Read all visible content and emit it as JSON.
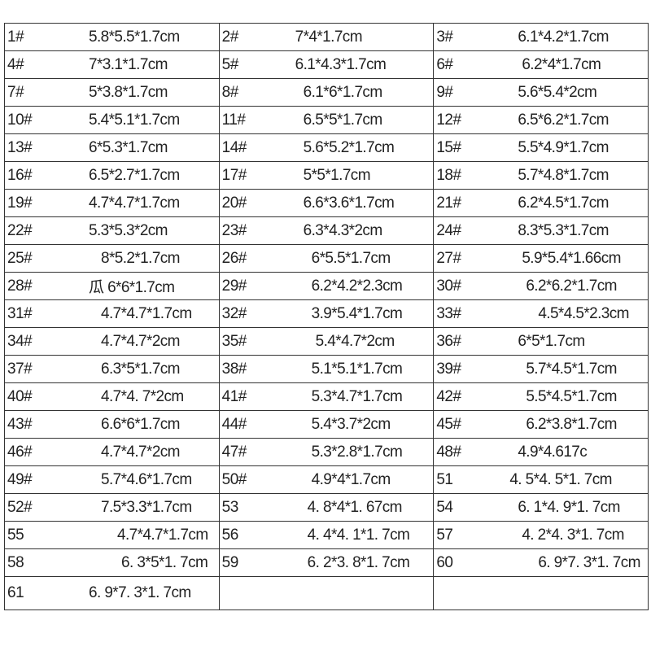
{
  "rows": [
    [
      {
        "id": "1#",
        "size": "5.8*5.5*1.7cm"
      },
      {
        "id": "2#",
        "size": "7*4*1.7cm"
      },
      {
        "id": "3#",
        "size": "6.1*4.2*1.7cm"
      }
    ],
    [
      {
        "id": "4#",
        "size": "7*3.1*1.7cm"
      },
      {
        "id": "5#",
        "size": "6.1*4.3*1.7cm"
      },
      {
        "id": "6#",
        "size": "6.2*4*1.7cm"
      }
    ],
    [
      {
        "id": "7#",
        "size": "5*3.8*1.7cm"
      },
      {
        "id": "8#",
        "size": "6.1*6*1.7cm"
      },
      {
        "id": "9#",
        "size": "5.6*5.4*2cm"
      }
    ],
    [
      {
        "id": "10#",
        "size": "5.4*5.1*1.7cm"
      },
      {
        "id": "11#",
        "size": "6.5*5*1.7cm"
      },
      {
        "id": "12#",
        "size": "6.5*6.2*1.7cm"
      }
    ],
    [
      {
        "id": "13#",
        "size": "6*5.3*1.7cm"
      },
      {
        "id": "14#",
        "size": "5.6*5.2*1.7cm"
      },
      {
        "id": "15#",
        "size": "5.5*4.9*1.7cm"
      }
    ],
    [
      {
        "id": "16#",
        "size": "6.5*2.7*1.7cm"
      },
      {
        "id": "17#",
        "size": "5*5*1.7cm"
      },
      {
        "id": "18#",
        "size": "5.7*4.8*1.7cm"
      }
    ],
    [
      {
        "id": "19#",
        "size": "4.7*4.7*1.7cm"
      },
      {
        "id": "20#",
        "size": "6.6*3.6*1.7cm"
      },
      {
        "id": "21#",
        "size": "6.2*4.5*1.7cm"
      }
    ],
    [
      {
        "id": "22#",
        "size": "5.3*5.3*2cm"
      },
      {
        "id": "23#",
        "size": "6.3*4.3*2cm"
      },
      {
        "id": "24#",
        "size": "8.3*5.3*1.7cm"
      }
    ],
    [
      {
        "id": "25#",
        "size": "8*5.2*1.7cm"
      },
      {
        "id": "26#",
        "size": "6*5.5*1.7cm"
      },
      {
        "id": "27#",
        "size": "5.9*5.4*1.66cm"
      }
    ],
    [
      {
        "id": "28#",
        "size": "瓜 6*6*1.7cm"
      },
      {
        "id": "29#",
        "size": "6.2*4.2*2.3cm"
      },
      {
        "id": "30#",
        "size": "6.2*6.2*1.7cm"
      }
    ],
    [
      {
        "id": "31#",
        "size": "4.7*4.7*1.7cm"
      },
      {
        "id": "32#",
        "size": "3.9*5.4*1.7cm"
      },
      {
        "id": "33#",
        "size": "4.5*4.5*2.3cm"
      }
    ],
    [
      {
        "id": "34#",
        "size": "4.7*4.7*2cm"
      },
      {
        "id": "35#",
        "size": "5.4*4.7*2cm"
      },
      {
        "id": "36#",
        "size": "6*5*1.7cm"
      }
    ],
    [
      {
        "id": "37#",
        "size": "6.3*5*1.7cm"
      },
      {
        "id": "38#",
        "size": "5.1*5.1*1.7cm"
      },
      {
        "id": "39#",
        "size": "5.7*4.5*1.7cm"
      }
    ],
    [
      {
        "id": "40#",
        "size": "4.7*4. 7*2cm"
      },
      {
        "id": "41#",
        "size": "5.3*4.7*1.7cm"
      },
      {
        "id": "42#",
        "size": "5.5*4.5*1.7cm"
      }
    ],
    [
      {
        "id": "43#",
        "size": "6.6*6*1.7cm"
      },
      {
        "id": "44#",
        "size": "5.4*3.7*2cm"
      },
      {
        "id": "45#",
        "size": "6.2*3.8*1.7cm"
      }
    ],
    [
      {
        "id": "46#",
        "size": "4.7*4.7*2cm"
      },
      {
        "id": "47#",
        "size": "5.3*2.8*1.7cm"
      },
      {
        "id": "48#",
        "size": "4.9*4.617c"
      }
    ],
    [
      {
        "id": "49#",
        "size": "5.7*4.6*1.7cm"
      },
      {
        "id": "50#",
        "size": "4.9*4*1.7cm"
      },
      {
        "id": "51",
        "size": "4. 5*4. 5*1. 7cm"
      }
    ],
    [
      {
        "id": "52#",
        "size": "7.5*3.3*1.7cm"
      },
      {
        "id": "53",
        "size": "4. 8*4*1. 67cm"
      },
      {
        "id": "54",
        "size": "6. 1*4. 9*1. 7cm"
      }
    ],
    [
      {
        "id": "55",
        "size": "4.7*4.7*1.7cm"
      },
      {
        "id": "56",
        "size": "4. 4*4. 1*1. 7cm"
      },
      {
        "id": "57",
        "size": "4. 2*4. 3*1. 7cm"
      }
    ],
    [
      {
        "id": "58",
        "size": "6. 3*5*1. 7cm"
      },
      {
        "id": "59",
        "size": "6. 2*3. 8*1. 7cm"
      },
      {
        "id": "60",
        "size": "6. 9*7. 3*1. 7cm"
      }
    ],
    [
      {
        "id": "61",
        "size": "6. 9*7. 3*1. 7cm"
      },
      null,
      null
    ]
  ]
}
